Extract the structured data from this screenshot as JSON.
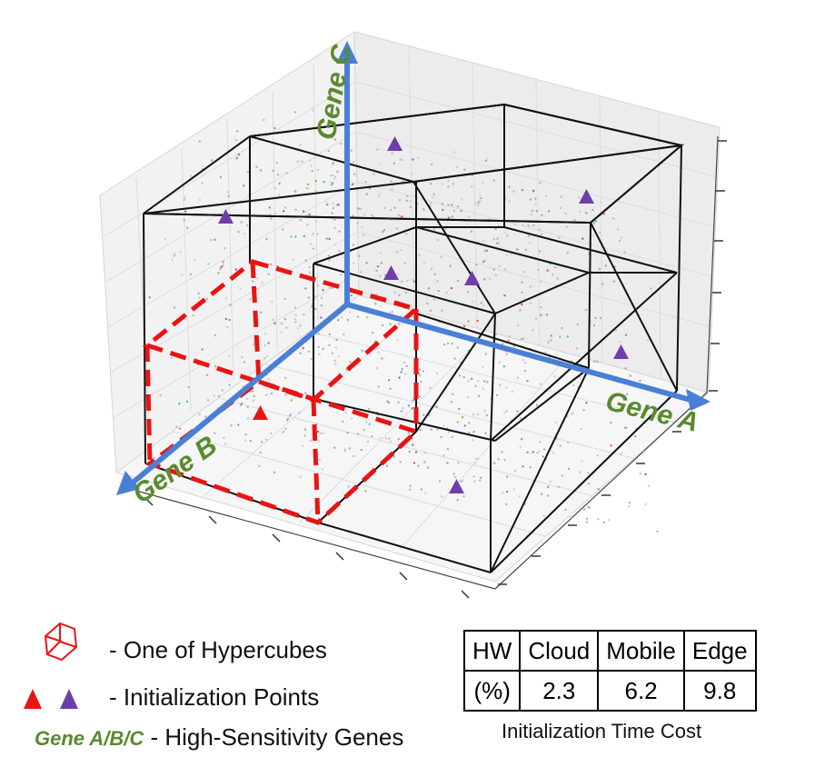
{
  "axes": {
    "x": "Gene A",
    "y": "Gene B",
    "z": "Gene C"
  },
  "legend": {
    "hypercube_label": "- One of Hypercubes",
    "init_points_label": "- Initialization Points",
    "genes_prefix": "Gene A/B/C",
    "genes_label": "- High-Sensitivity Genes"
  },
  "table": {
    "headers": [
      "HW",
      "Cloud",
      "Mobile",
      "Edge"
    ],
    "row": [
      "(%)",
      "2.3",
      "6.2",
      "9.8"
    ],
    "caption": "Initialization Time Cost"
  },
  "colors": {
    "axis_arrow": "#4a7fd6",
    "hypercube_highlight": "#e81414",
    "init_point_red": "#e81414",
    "init_point_purple": "#6e3fa8",
    "gene_label": "#5a8a2e"
  }
}
